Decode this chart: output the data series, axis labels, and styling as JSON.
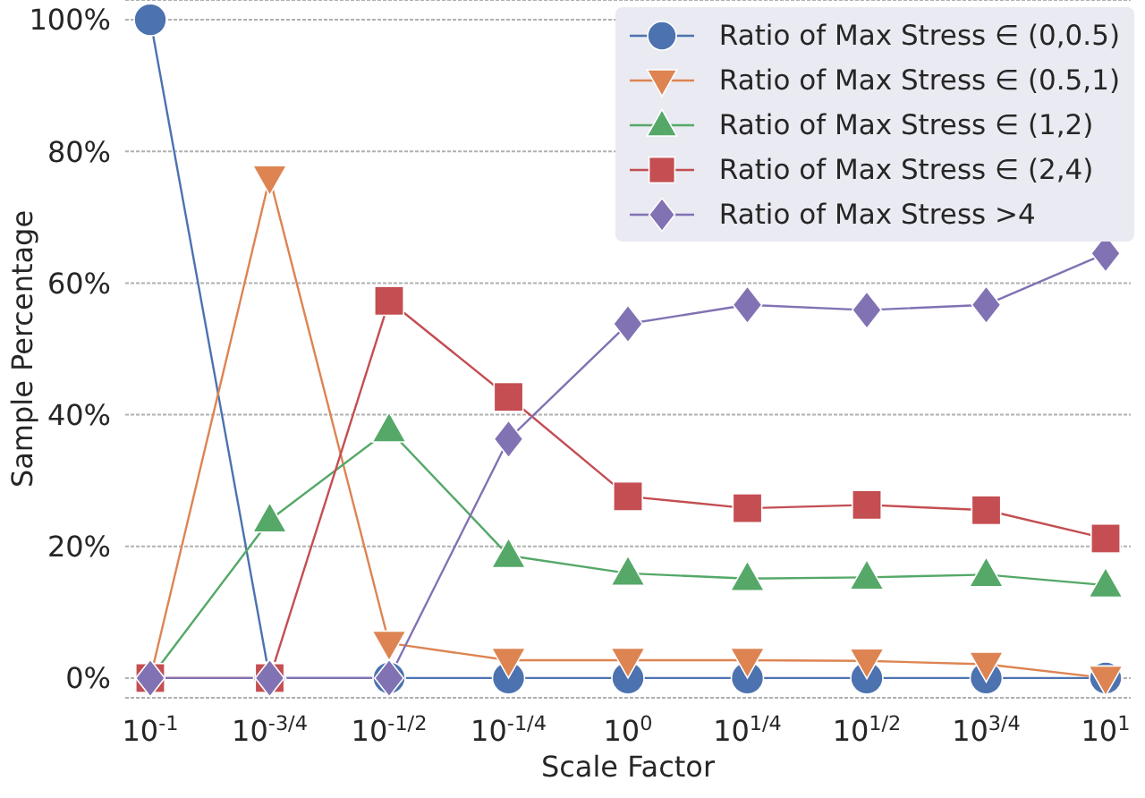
{
  "chart_data": {
    "type": "line",
    "xlabel": "Scale Factor",
    "ylabel": "Sample Percentage",
    "categories": [
      "10$^{-1}$",
      "10$^{-3/4}$",
      "10$^{-1/2}$",
      "10$^{-1/4}$",
      "10$^{0}$",
      "10$^{1/4}$",
      "10$^{1/2}$",
      "10$^{3/4}$",
      "10$^{1}$"
    ],
    "series": [
      {
        "name": "Ratio of Max Stress ∈ (0,0.5)",
        "color": "#4c72b0",
        "marker": "circle",
        "values": [
          100,
          0,
          0,
          0,
          0,
          0,
          0,
          0,
          0
        ]
      },
      {
        "name": "Ratio of Max Stress ∈ (0.5,1)",
        "color": "#dd8452",
        "marker": "triangle-down",
        "values": [
          0,
          76,
          5.3,
          2.7,
          2.7,
          2.7,
          2.6,
          2.1,
          0
        ]
      },
      {
        "name": "Ratio of Max Stress ∈ (1,2)",
        "color": "#55a868",
        "marker": "triangle",
        "values": [
          0,
          24,
          37.7,
          18.6,
          15.9,
          15.1,
          15.3,
          15.7,
          14.1
        ]
      },
      {
        "name": "Ratio of Max Stress ∈ (2,4)",
        "color": "#c44e52",
        "marker": "square",
        "values": [
          0,
          0,
          57.3,
          42.7,
          27.6,
          25.8,
          26.3,
          25.5,
          21.2
        ]
      },
      {
        "name": "Ratio of Max Stress >4",
        "color": "#8172b3",
        "marker": "diamond",
        "values": [
          0,
          0,
          0,
          36.3,
          53.8,
          56.7,
          55.9,
          56.7,
          64.5
        ]
      }
    ],
    "ylim": [
      -3,
      103
    ],
    "yticks": [
      {
        "value": 0,
        "label": "0%"
      },
      {
        "value": 20,
        "label": "20%"
      },
      {
        "value": 40,
        "label": "40%"
      },
      {
        "value": 60,
        "label": "60%"
      },
      {
        "value": 80,
        "label": "80%"
      },
      {
        "value": 100,
        "label": "100%"
      }
    ],
    "grid": "y",
    "legend": "top right",
    "line_style": "solid"
  }
}
